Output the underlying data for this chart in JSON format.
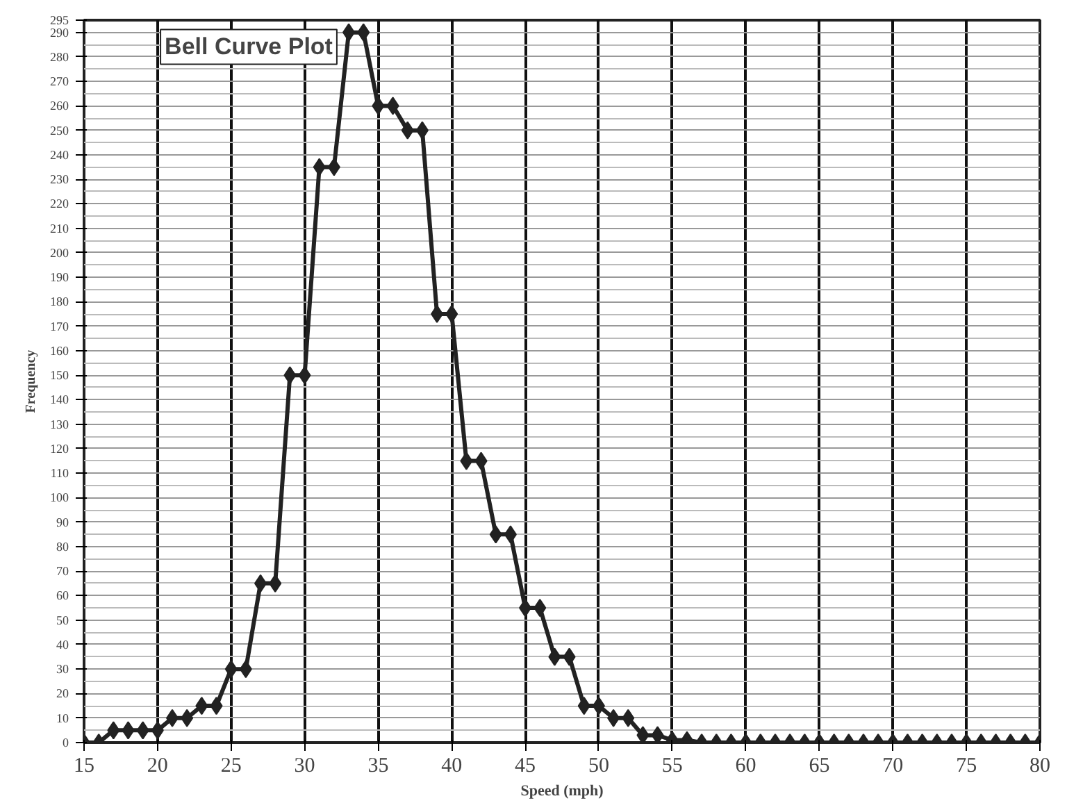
{
  "chart_data": {
    "type": "line",
    "title": "Bell Curve Plot",
    "xlabel": "Speed (mph)",
    "ylabel": "Frequency",
    "x": [
      15,
      16,
      17,
      18,
      19,
      20,
      21,
      22,
      23,
      24,
      25,
      26,
      27,
      28,
      29,
      30,
      31,
      32,
      33,
      34,
      35,
      36,
      37,
      38,
      39,
      40,
      41,
      42,
      43,
      44,
      45,
      46,
      47,
      48,
      49,
      50,
      51,
      52,
      53,
      54,
      55,
      56,
      57,
      58,
      59,
      60,
      61,
      62,
      63,
      64,
      65,
      66,
      67,
      68,
      69,
      70,
      71,
      72,
      73,
      74,
      75,
      76,
      77,
      78,
      79,
      80
    ],
    "series": [
      {
        "color": "#222222",
        "values": [
          0,
          0,
          5,
          5,
          5,
          5,
          10,
          10,
          15,
          15,
          30,
          30,
          65,
          65,
          150,
          150,
          235,
          235,
          290,
          290,
          260,
          260,
          250,
          250,
          175,
          175,
          115,
          115,
          85,
          85,
          55,
          55,
          35,
          35,
          15,
          15,
          10,
          10,
          3,
          3,
          1,
          1,
          0,
          0,
          0,
          0,
          0,
          0,
          0,
          0,
          0,
          0,
          0,
          0,
          0,
          0,
          0,
          0,
          0,
          0,
          0,
          0,
          0,
          0,
          0,
          0
        ]
      }
    ],
    "xlim": [
      15,
      80
    ],
    "ylim": [
      0,
      295
    ],
    "xticks": [
      15,
      20,
      25,
      30,
      35,
      40,
      45,
      50,
      55,
      60,
      65,
      70,
      75,
      80
    ],
    "yticks": [
      0,
      10,
      20,
      30,
      40,
      50,
      60,
      70,
      80,
      90,
      100,
      110,
      120,
      130,
      140,
      150,
      160,
      170,
      180,
      190,
      200,
      210,
      220,
      230,
      240,
      250,
      260,
      270,
      280,
      290,
      295
    ],
    "grid": true,
    "marker": "diamond",
    "line_style": "solid"
  }
}
